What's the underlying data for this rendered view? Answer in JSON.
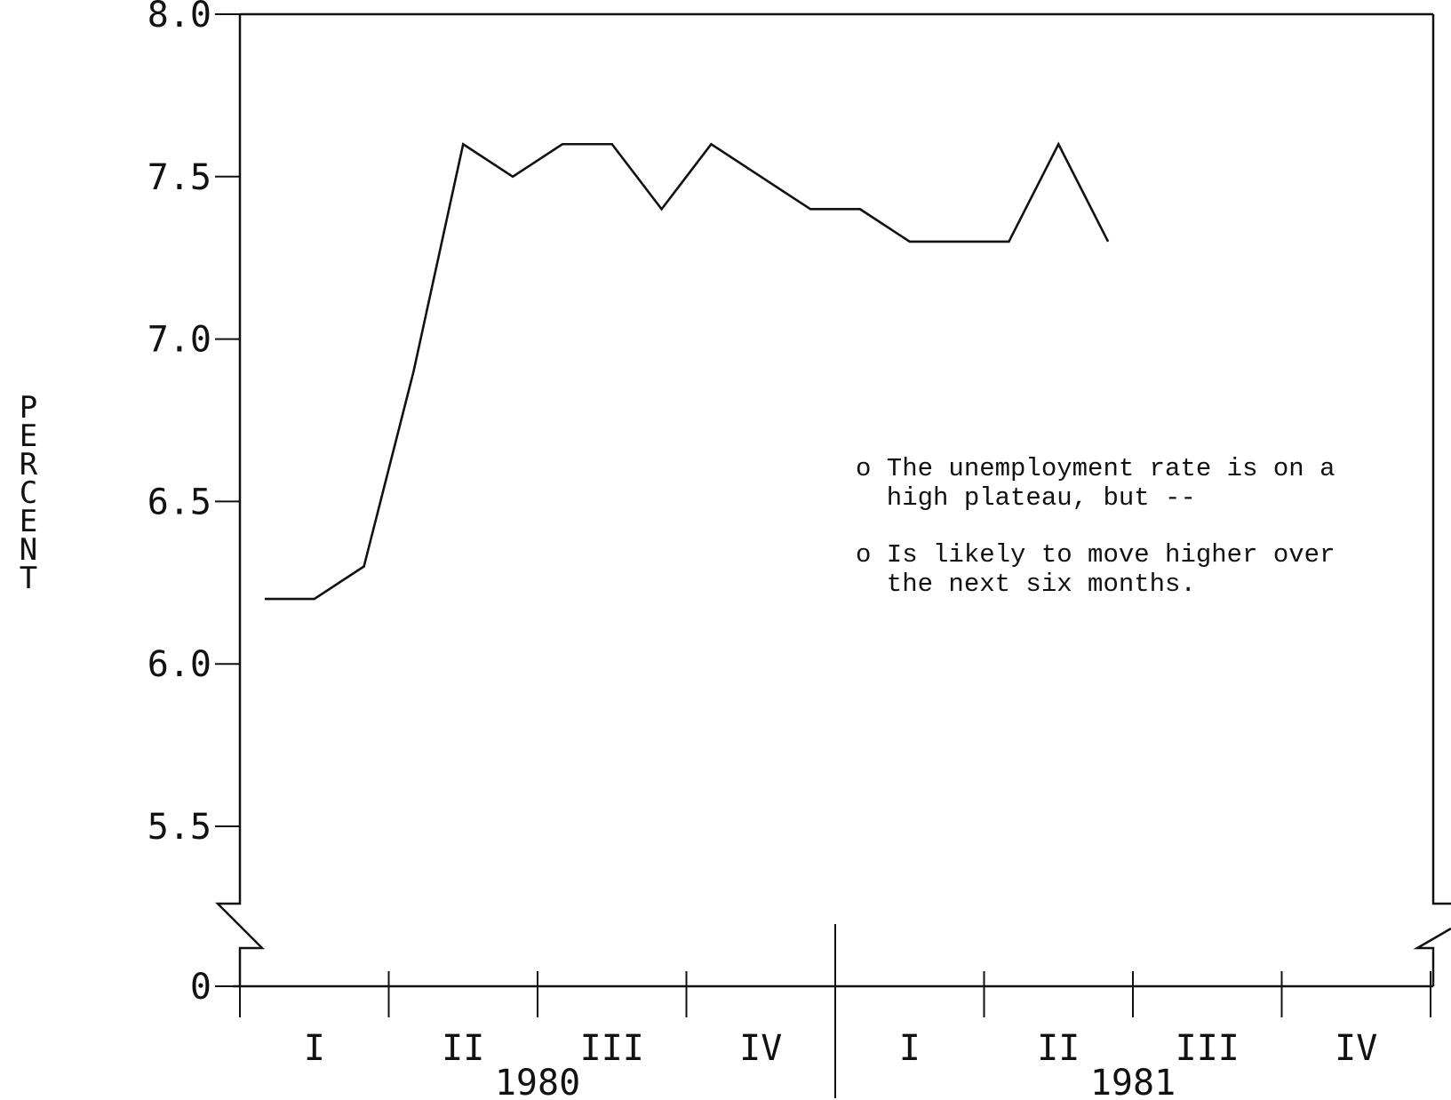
{
  "chart_data": {
    "type": "line",
    "title": "",
    "xlabel": "",
    "ylabel": "PERCENT",
    "ylim": [
      5.5,
      8.0
    ],
    "y_break": {
      "from": 0,
      "to": 5.5
    },
    "y_ticks": [
      "8.0",
      "7.5",
      "7.0",
      "6.5",
      "6.0",
      "5.5",
      "0"
    ],
    "y_tick_values": [
      8.0,
      7.5,
      7.0,
      6.5,
      6.0,
      5.5,
      0
    ],
    "quarters": [
      "I",
      "II",
      "III",
      "IV",
      "I",
      "II",
      "III",
      "IV"
    ],
    "years": [
      "1980",
      "1981"
    ],
    "x_units": "months from start of 1980 (0.5 = January 1980)",
    "series": [
      {
        "x": [
          0.5,
          1.5,
          2.5,
          3.5,
          4.5,
          5.5,
          6.5,
          7.5,
          8.5,
          9.5,
          10.5,
          11.5,
          12.5,
          13.5,
          14.5,
          15.5,
          16.5,
          17.5
        ],
        "values": [
          6.2,
          6.2,
          6.3,
          6.9,
          7.6,
          7.5,
          7.6,
          7.6,
          7.4,
          7.6,
          7.5,
          7.4,
          7.4,
          7.3,
          7.3,
          7.3,
          7.6,
          7.3
        ]
      }
    ],
    "annotations": [
      [
        "o The unemployment rate is on a",
        "  high plateau, but --"
      ],
      [
        "o Is likely to move higher over",
        "  the next six months."
      ]
    ],
    "grid": false,
    "legend": "none"
  }
}
